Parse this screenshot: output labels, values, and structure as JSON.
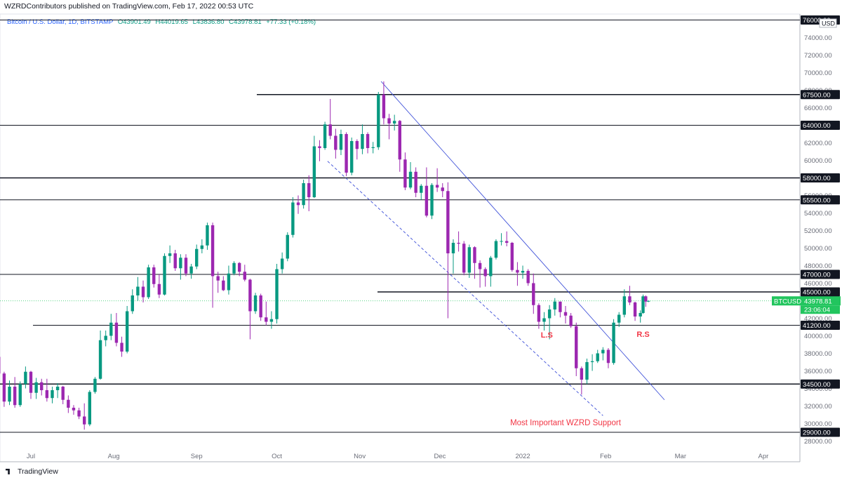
{
  "header": {
    "text": "WZRDContributors published on TradingView.com, Feb 17, 2022 00:53 UTC"
  },
  "legend": {
    "symbol": "Bitcoin / U.S. Dollar, 1D, BITSTAMP",
    "open": "O43901.49",
    "high": "H44019.65",
    "low": "L43836.80",
    "close": "C43978.81",
    "change": "+77.33 (+0.18%)"
  },
  "footer": {
    "brand": "TradingView"
  },
  "colors": {
    "up": "#089981",
    "down": "#9c27b0",
    "bg": "#ffffff",
    "trendline": "#3f51d9",
    "annotation": "#f23645",
    "price_badge": "#22c55e"
  },
  "chart_data": {
    "type": "candlestick",
    "symbol": "BTCUSD",
    "currency": "USD",
    "y_axis_ticks": [
      28000,
      30000,
      32000,
      34000,
      36000,
      38000,
      40000,
      42000,
      44000,
      46000,
      48000,
      50000,
      52000,
      54000,
      56000,
      58000,
      60000,
      62000,
      64000,
      66000,
      68000,
      70000,
      72000,
      74000,
      76000
    ],
    "x_axis_labels": [
      "Jul",
      "Aug",
      "Sep",
      "Oct",
      "Nov",
      "Dec",
      "2022",
      "Feb",
      "Mar",
      "Apr"
    ],
    "horizontal_levels": [
      {
        "price": 76000,
        "label": "76000.00"
      },
      {
        "price": 67500,
        "label": "67500.00"
      },
      {
        "price": 64000,
        "label": "64000.00"
      },
      {
        "price": 58000,
        "label": "58000.00"
      },
      {
        "price": 55500,
        "label": "55500.00"
      },
      {
        "price": 47000,
        "label": "47000.00"
      },
      {
        "price": 45000,
        "label": "45000.00"
      },
      {
        "price": 41200,
        "label": "41200.00"
      },
      {
        "price": 34500,
        "label": "34500.00"
      },
      {
        "price": 29000,
        "label": "29000.00"
      }
    ],
    "current_price": {
      "symbol": "BTCUSD",
      "price": "43978.81",
      "countdown": "23:06:04"
    },
    "annotations": [
      {
        "text": "L.S",
        "date": "2022-01-10",
        "price": 39800
      },
      {
        "text": "R.S",
        "date": "2022-02-15",
        "price": 39900
      },
      {
        "text": "Most Important WZRD Support",
        "date": "2022-01-17",
        "price": 29800
      }
    ],
    "trendlines": [
      {
        "style": "solid",
        "from": {
          "date": "2021-11-09",
          "price": 69000
        },
        "to": {
          "date": "2022-02-23",
          "price": 32700
        }
      },
      {
        "style": "dashed",
        "from": {
          "date": "2021-10-20",
          "price": 59900
        },
        "to": {
          "date": "2022-01-31",
          "price": 30900
        }
      }
    ],
    "candles": [
      {
        "d": "2021-06-15",
        "o": 40100,
        "h": 41000,
        "l": 38800,
        "c": 40300
      },
      {
        "d": "2021-06-17",
        "o": 40300,
        "h": 40600,
        "l": 37300,
        "c": 37600
      },
      {
        "d": "2021-06-19",
        "o": 37600,
        "h": 39000,
        "l": 34800,
        "c": 35700
      },
      {
        "d": "2021-06-21",
        "o": 35700,
        "h": 35900,
        "l": 31900,
        "c": 32500
      },
      {
        "d": "2021-06-23",
        "o": 32500,
        "h": 34900,
        "l": 32100,
        "c": 34200
      },
      {
        "d": "2021-06-25",
        "o": 34200,
        "h": 35300,
        "l": 31800,
        "c": 32100
      },
      {
        "d": "2021-06-27",
        "o": 32100,
        "h": 34800,
        "l": 31900,
        "c": 34500
      },
      {
        "d": "2021-06-29",
        "o": 34500,
        "h": 36500,
        "l": 34000,
        "c": 35900
      },
      {
        "d": "2021-07-01",
        "o": 35900,
        "h": 36000,
        "l": 32800,
        "c": 33500
      },
      {
        "d": "2021-07-03",
        "o": 33500,
        "h": 35200,
        "l": 32800,
        "c": 34700
      },
      {
        "d": "2021-07-05",
        "o": 34700,
        "h": 35100,
        "l": 33200,
        "c": 33800
      },
      {
        "d": "2021-07-07",
        "o": 33800,
        "h": 35100,
        "l": 32500,
        "c": 32900
      },
      {
        "d": "2021-07-09",
        "o": 32900,
        "h": 34200,
        "l": 32300,
        "c": 33800
      },
      {
        "d": "2021-07-11",
        "o": 33800,
        "h": 34600,
        "l": 32900,
        "c": 34200
      },
      {
        "d": "2021-07-13",
        "o": 34200,
        "h": 34300,
        "l": 32200,
        "c": 32700
      },
      {
        "d": "2021-07-15",
        "o": 32700,
        "h": 33200,
        "l": 31200,
        "c": 31800
      },
      {
        "d": "2021-07-17",
        "o": 31800,
        "h": 32100,
        "l": 31000,
        "c": 31500
      },
      {
        "d": "2021-07-19",
        "o": 31500,
        "h": 31800,
        "l": 30500,
        "c": 30800
      },
      {
        "d": "2021-07-21",
        "o": 30800,
        "h": 32300,
        "l": 29300,
        "c": 29900
      },
      {
        "d": "2021-07-23",
        "o": 29900,
        "h": 33800,
        "l": 29700,
        "c": 33600
      },
      {
        "d": "2021-07-25",
        "o": 33600,
        "h": 35300,
        "l": 33400,
        "c": 35100
      },
      {
        "d": "2021-07-27",
        "o": 35100,
        "h": 40600,
        "l": 35000,
        "c": 39500
      },
      {
        "d": "2021-07-29",
        "o": 39500,
        "h": 40600,
        "l": 38800,
        "c": 40000
      },
      {
        "d": "2021-07-31",
        "o": 40000,
        "h": 42500,
        "l": 39500,
        "c": 41500
      },
      {
        "d": "2021-08-02",
        "o": 41500,
        "h": 42600,
        "l": 38800,
        "c": 39200
      },
      {
        "d": "2021-08-04",
        "o": 39200,
        "h": 39900,
        "l": 37600,
        "c": 38200
      },
      {
        "d": "2021-08-06",
        "o": 38200,
        "h": 43400,
        "l": 38000,
        "c": 42800
      },
      {
        "d": "2021-08-08",
        "o": 42800,
        "h": 45300,
        "l": 42500,
        "c": 44600
      },
      {
        "d": "2021-08-10",
        "o": 44600,
        "h": 46700,
        "l": 44000,
        "c": 45600
      },
      {
        "d": "2021-08-12",
        "o": 45600,
        "h": 46300,
        "l": 43800,
        "c": 44400
      },
      {
        "d": "2021-08-14",
        "o": 44400,
        "h": 48100,
        "l": 44200,
        "c": 47800
      },
      {
        "d": "2021-08-16",
        "o": 47800,
        "h": 48100,
        "l": 45500,
        "c": 45900
      },
      {
        "d": "2021-08-18",
        "o": 45900,
        "h": 47000,
        "l": 44300,
        "c": 44700
      },
      {
        "d": "2021-08-20",
        "o": 44700,
        "h": 49400,
        "l": 44600,
        "c": 49100
      },
      {
        "d": "2021-08-22",
        "o": 49100,
        "h": 50300,
        "l": 48300,
        "c": 49400
      },
      {
        "d": "2021-08-24",
        "o": 49400,
        "h": 49800,
        "l": 47400,
        "c": 47700
      },
      {
        "d": "2021-08-26",
        "o": 47700,
        "h": 49300,
        "l": 46400,
        "c": 48900
      },
      {
        "d": "2021-08-28",
        "o": 48900,
        "h": 49300,
        "l": 46800,
        "c": 47100
      },
      {
        "d": "2021-08-30",
        "o": 47100,
        "h": 48200,
        "l": 46500,
        "c": 47900
      },
      {
        "d": "2021-09-01",
        "o": 47900,
        "h": 50400,
        "l": 47600,
        "c": 49900
      },
      {
        "d": "2021-09-03",
        "o": 49900,
        "h": 51000,
        "l": 49400,
        "c": 50300
      },
      {
        "d": "2021-09-05",
        "o": 50300,
        "h": 52900,
        "l": 49800,
        "c": 52600
      },
      {
        "d": "2021-09-07",
        "o": 52600,
        "h": 52900,
        "l": 43200,
        "c": 46800
      },
      {
        "d": "2021-09-09",
        "o": 46800,
        "h": 47300,
        "l": 44900,
        "c": 46300
      },
      {
        "d": "2021-09-11",
        "o": 46300,
        "h": 46800,
        "l": 45100,
        "c": 45200
      },
      {
        "d": "2021-09-13",
        "o": 45200,
        "h": 48000,
        "l": 44700,
        "c": 47100
      },
      {
        "d": "2021-09-15",
        "o": 47100,
        "h": 48500,
        "l": 46900,
        "c": 48300
      },
      {
        "d": "2021-09-17",
        "o": 48300,
        "h": 48400,
        "l": 46800,
        "c": 47300
      },
      {
        "d": "2021-09-19",
        "o": 47300,
        "h": 48100,
        "l": 46200,
        "c": 46400
      },
      {
        "d": "2021-09-21",
        "o": 46400,
        "h": 46500,
        "l": 39600,
        "c": 42800
      },
      {
        "d": "2021-09-23",
        "o": 42800,
        "h": 44900,
        "l": 42500,
        "c": 44600
      },
      {
        "d": "2021-09-25",
        "o": 44600,
        "h": 44800,
        "l": 41700,
        "c": 42100
      },
      {
        "d": "2021-09-27",
        "o": 42100,
        "h": 43900,
        "l": 41200,
        "c": 41600
      },
      {
        "d": "2021-09-29",
        "o": 41600,
        "h": 42800,
        "l": 40800,
        "c": 41900
      },
      {
        "d": "2021-10-01",
        "o": 41900,
        "h": 48200,
        "l": 41400,
        "c": 47600
      },
      {
        "d": "2021-10-03",
        "o": 47600,
        "h": 49500,
        "l": 47100,
        "c": 48800
      },
      {
        "d": "2021-10-05",
        "o": 48800,
        "h": 51800,
        "l": 48500,
        "c": 51500
      },
      {
        "d": "2021-10-07",
        "o": 51500,
        "h": 55800,
        "l": 51200,
        "c": 55200
      },
      {
        "d": "2021-10-09",
        "o": 55200,
        "h": 56000,
        "l": 53900,
        "c": 54900
      },
      {
        "d": "2021-10-11",
        "o": 54900,
        "h": 57800,
        "l": 54500,
        "c": 57400
      },
      {
        "d": "2021-10-13",
        "o": 57400,
        "h": 58300,
        "l": 54200,
        "c": 55800
      },
      {
        "d": "2021-10-15",
        "o": 55800,
        "h": 62800,
        "l": 55700,
        "c": 61600
      },
      {
        "d": "2021-10-17",
        "o": 61600,
        "h": 62300,
        "l": 59900,
        "c": 61400
      },
      {
        "d": "2021-10-19",
        "o": 61400,
        "h": 64400,
        "l": 61200,
        "c": 64100
      },
      {
        "d": "2021-10-21",
        "o": 64100,
        "h": 67000,
        "l": 62400,
        "c": 62800
      },
      {
        "d": "2021-10-23",
        "o": 62800,
        "h": 63600,
        "l": 60200,
        "c": 61200
      },
      {
        "d": "2021-10-25",
        "o": 61200,
        "h": 63500,
        "l": 60600,
        "c": 63000
      },
      {
        "d": "2021-10-27",
        "o": 63000,
        "h": 63200,
        "l": 58200,
        "c": 58600
      },
      {
        "d": "2021-10-29",
        "o": 58600,
        "h": 62600,
        "l": 58300,
        "c": 62200
      },
      {
        "d": "2021-10-31",
        "o": 62200,
        "h": 62400,
        "l": 60100,
        "c": 61300
      },
      {
        "d": "2021-11-02",
        "o": 61300,
        "h": 64100,
        "l": 60700,
        "c": 63000
      },
      {
        "d": "2021-11-04",
        "o": 63000,
        "h": 63200,
        "l": 60800,
        "c": 61400
      },
      {
        "d": "2021-11-06",
        "o": 61400,
        "h": 62100,
        "l": 60800,
        "c": 61500
      },
      {
        "d": "2021-11-08",
        "o": 61500,
        "h": 67800,
        "l": 61200,
        "c": 67500
      },
      {
        "d": "2021-11-10",
        "o": 67500,
        "h": 69000,
        "l": 64100,
        "c": 64800
      },
      {
        "d": "2021-11-12",
        "o": 64800,
        "h": 65300,
        "l": 62400,
        "c": 64200
      },
      {
        "d": "2021-11-14",
        "o": 64200,
        "h": 65200,
        "l": 63400,
        "c": 64500
      },
      {
        "d": "2021-11-16",
        "o": 64500,
        "h": 64600,
        "l": 58700,
        "c": 60100
      },
      {
        "d": "2021-11-18",
        "o": 60100,
        "h": 60900,
        "l": 56600,
        "c": 56900
      },
      {
        "d": "2021-11-20",
        "o": 56900,
        "h": 59800,
        "l": 56700,
        "c": 58700
      },
      {
        "d": "2021-11-22",
        "o": 58700,
        "h": 59200,
        "l": 55800,
        "c": 56300
      },
      {
        "d": "2021-11-24",
        "o": 56300,
        "h": 57300,
        "l": 55500,
        "c": 57100
      },
      {
        "d": "2021-11-26",
        "o": 57100,
        "h": 59200,
        "l": 53500,
        "c": 53700
      },
      {
        "d": "2021-11-28",
        "o": 53700,
        "h": 57400,
        "l": 53300,
        "c": 57200
      },
      {
        "d": "2021-11-30",
        "o": 57200,
        "h": 59100,
        "l": 56400,
        "c": 56900
      },
      {
        "d": "2021-12-02",
        "o": 56900,
        "h": 57400,
        "l": 55800,
        "c": 56500
      },
      {
        "d": "2021-12-04",
        "o": 56500,
        "h": 57500,
        "l": 42000,
        "c": 49400
      },
      {
        "d": "2021-12-06",
        "o": 49400,
        "h": 51000,
        "l": 47100,
        "c": 50600
      },
      {
        "d": "2021-12-08",
        "o": 50600,
        "h": 51900,
        "l": 49600,
        "c": 50500
      },
      {
        "d": "2021-12-10",
        "o": 50500,
        "h": 50800,
        "l": 46900,
        "c": 47200
      },
      {
        "d": "2021-12-12",
        "o": 47200,
        "h": 50400,
        "l": 46600,
        "c": 50100
      },
      {
        "d": "2021-12-14",
        "o": 50100,
        "h": 50200,
        "l": 46500,
        "c": 48300
      },
      {
        "d": "2021-12-16",
        "o": 48300,
        "h": 48600,
        "l": 45500,
        "c": 47600
      },
      {
        "d": "2021-12-18",
        "o": 47600,
        "h": 47800,
        "l": 45600,
        "c": 46800
      },
      {
        "d": "2021-12-20",
        "o": 46800,
        "h": 49100,
        "l": 45600,
        "c": 48900
      },
      {
        "d": "2021-12-22",
        "o": 48900,
        "h": 51000,
        "l": 48700,
        "c": 50800
      },
      {
        "d": "2021-12-24",
        "o": 50800,
        "h": 51700,
        "l": 50300,
        "c": 50800
      },
      {
        "d": "2021-12-26",
        "o": 50800,
        "h": 51900,
        "l": 50200,
        "c": 50600
      },
      {
        "d": "2021-12-28",
        "o": 50600,
        "h": 50700,
        "l": 47300,
        "c": 47500
      },
      {
        "d": "2021-12-30",
        "o": 47500,
        "h": 48400,
        "l": 45700,
        "c": 47200
      },
      {
        "d": "2022-01-01",
        "o": 47200,
        "h": 48000,
        "l": 46500,
        "c": 47400
      },
      {
        "d": "2022-01-03",
        "o": 47400,
        "h": 47600,
        "l": 45700,
        "c": 46000
      },
      {
        "d": "2022-01-05",
        "o": 46000,
        "h": 47100,
        "l": 42500,
        "c": 43500
      },
      {
        "d": "2022-01-07",
        "o": 43500,
        "h": 43700,
        "l": 40800,
        "c": 41600
      },
      {
        "d": "2022-01-09",
        "o": 41600,
        "h": 42700,
        "l": 40600,
        "c": 42000
      },
      {
        "d": "2022-01-11",
        "o": 42000,
        "h": 43500,
        "l": 39600,
        "c": 43000
      },
      {
        "d": "2022-01-13",
        "o": 43000,
        "h": 44300,
        "l": 42300,
        "c": 43900
      },
      {
        "d": "2022-01-15",
        "o": 43900,
        "h": 43900,
        "l": 42100,
        "c": 42700
      },
      {
        "d": "2022-01-17",
        "o": 42700,
        "h": 43400,
        "l": 41400,
        "c": 42300
      },
      {
        "d": "2022-01-19",
        "o": 42300,
        "h": 42600,
        "l": 40900,
        "c": 41100
      },
      {
        "d": "2022-01-21",
        "o": 41100,
        "h": 41500,
        "l": 35400,
        "c": 36300
      },
      {
        "d": "2022-01-23",
        "o": 36300,
        "h": 36500,
        "l": 33300,
        "c": 35000
      },
      {
        "d": "2022-01-25",
        "o": 35000,
        "h": 37400,
        "l": 34500,
        "c": 37000
      },
      {
        "d": "2022-01-27",
        "o": 37000,
        "h": 37900,
        "l": 36000,
        "c": 37100
      },
      {
        "d": "2022-01-29",
        "o": 37100,
        "h": 38400,
        "l": 36900,
        "c": 38000
      },
      {
        "d": "2022-01-31",
        "o": 38000,
        "h": 38700,
        "l": 37200,
        "c": 38400
      },
      {
        "d": "2022-02-02",
        "o": 38400,
        "h": 38600,
        "l": 36300,
        "c": 36900
      },
      {
        "d": "2022-02-04",
        "o": 36900,
        "h": 41900,
        "l": 36700,
        "c": 41500
      },
      {
        "d": "2022-02-06",
        "o": 41500,
        "h": 42700,
        "l": 41000,
        "c": 42400
      },
      {
        "d": "2022-02-08",
        "o": 42400,
        "h": 45300,
        "l": 42100,
        "c": 44500
      },
      {
        "d": "2022-02-10",
        "o": 44500,
        "h": 45700,
        "l": 43500,
        "c": 43800
      },
      {
        "d": "2022-02-12",
        "o": 43800,
        "h": 43900,
        "l": 41700,
        "c": 42200
      },
      {
        "d": "2022-02-14",
        "o": 42200,
        "h": 42900,
        "l": 41500,
        "c": 42600
      },
      {
        "d": "2022-02-15",
        "o": 42600,
        "h": 44700,
        "l": 42500,
        "c": 44500
      },
      {
        "d": "2022-02-16",
        "o": 44500,
        "h": 44600,
        "l": 43300,
        "c": 43900
      },
      {
        "d": "2022-02-17",
        "o": 43901.49,
        "h": 44019.65,
        "l": 43836.8,
        "c": 43978.81
      }
    ]
  }
}
